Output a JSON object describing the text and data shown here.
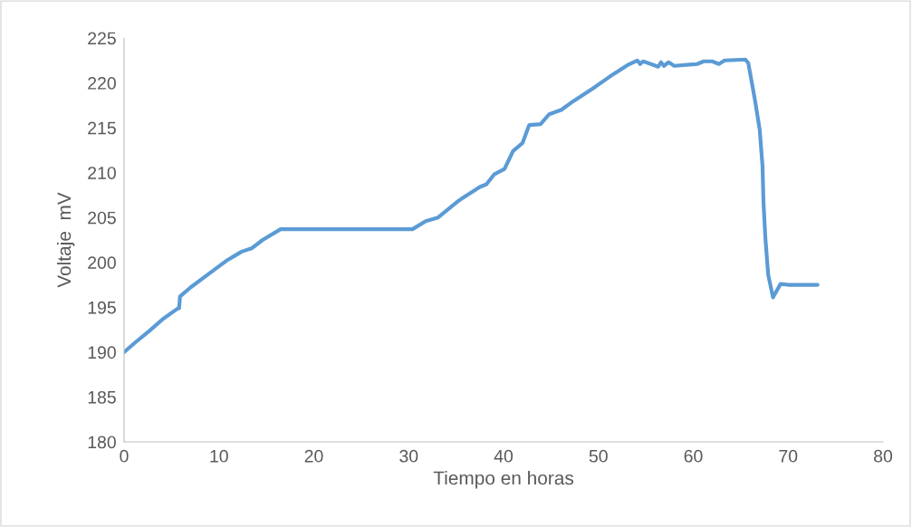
{
  "chart_data": {
    "type": "line",
    "xlabel": "Tiempo en horas",
    "ylabel": "Voltaje  mV",
    "xlim": [
      0,
      80
    ],
    "xticks": [
      0,
      10,
      20,
      30,
      40,
      50,
      60,
      70,
      80
    ],
    "ylim": [
      180,
      225
    ],
    "yticks": [
      180,
      185,
      190,
      195,
      200,
      205,
      210,
      215,
      220,
      225
    ],
    "grid": false,
    "marker": "none",
    "line_style": "solid",
    "series": [
      {
        "color": "#5b9bd5",
        "x": [
          0,
          1.2,
          2.7,
          4.1,
          5.7,
          5.8,
          5.9,
          7.0,
          8.9,
          10.8,
          12.4,
          13.5,
          14.6,
          16.5,
          20,
          25,
          30.4,
          31.8,
          33.1,
          35.3,
          37.5,
          38.2,
          39.0,
          40.1,
          41.0,
          42.0,
          42.7,
          43.9,
          44.8,
          46.1,
          47.4,
          49.3,
          51.2,
          53.1,
          54.1,
          54.4,
          54.7,
          55.0,
          55.8,
          56.3,
          56.6,
          56.9,
          57.4,
          58.0,
          60.4,
          61.1,
          62.0,
          62.7,
          63.3,
          65.5,
          65.8,
          66.5,
          67.0,
          67.3,
          67.4,
          67.6,
          67.9,
          68.4,
          69.2,
          70.0,
          70.9,
          73.1
        ],
        "values": [
          190.0,
          191.1,
          192.4,
          193.7,
          194.9,
          194.9,
          196.2,
          197.2,
          198.7,
          200.2,
          201.2,
          201.6,
          202.5,
          203.7,
          203.7,
          203.7,
          203.7,
          204.6,
          205.0,
          206.9,
          208.4,
          208.7,
          209.8,
          210.4,
          212.4,
          213.3,
          215.3,
          215.4,
          216.5,
          217.0,
          218.0,
          219.3,
          220.7,
          222.0,
          222.5,
          222.1,
          222.4,
          222.3,
          222.0,
          221.8,
          222.3,
          221.9,
          222.3,
          221.9,
          222.1,
          222.4,
          222.4,
          222.1,
          222.5,
          222.6,
          222.2,
          218.1,
          214.8,
          210.7,
          206.7,
          202.7,
          198.6,
          196.1,
          197.6,
          197.5,
          197.5,
          197.5
        ]
      }
    ]
  }
}
